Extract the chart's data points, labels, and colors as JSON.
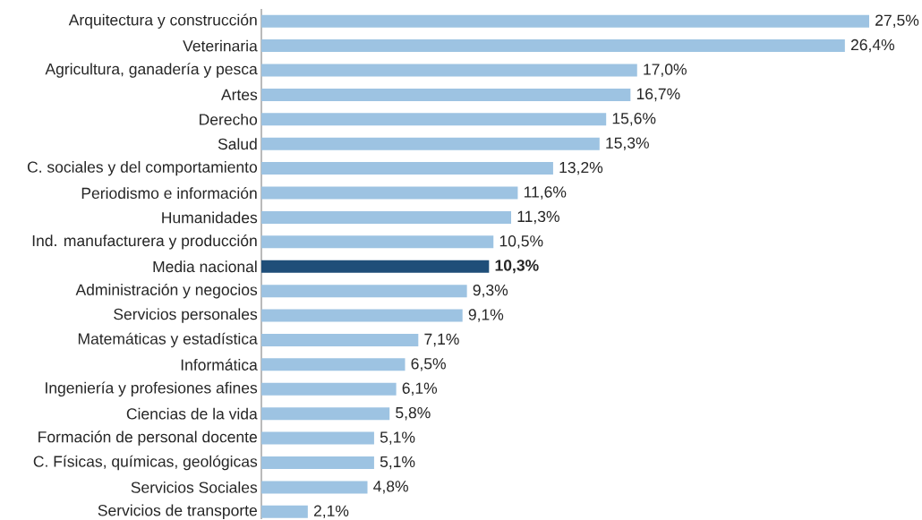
{
  "chart_data": {
    "type": "bar",
    "orientation": "horizontal",
    "categories": [
      "Arquitectura y construcción",
      "Veterinaria",
      "Agricultura, ganadería y pesca",
      "Artes",
      "Derecho",
      "Salud",
      "C. sociales y del comportamiento",
      "Periodismo e información",
      "Humanidades",
      "Ind. manufacturera y producción",
      "Media nacional",
      "Administración y negocios",
      "Servicios personales",
      "Matemáticas y estadística",
      "Informática",
      "Ingeniería y profesiones afines",
      "Ciencias de la vida",
      "Formación de personal docente",
      "C. Físicas, químicas, geológicas",
      "Servicios Sociales",
      "Servicios de transporte"
    ],
    "values": [
      27.5,
      26.4,
      17.0,
      16.7,
      15.6,
      15.3,
      13.2,
      11.6,
      11.3,
      10.5,
      10.3,
      9.3,
      9.1,
      7.1,
      6.5,
      6.1,
      5.8,
      5.1,
      5.1,
      4.8,
      2.1
    ],
    "value_labels": [
      "27,5%",
      "26,4%",
      "17,0%",
      "16,7%",
      "15,6%",
      "15,3%",
      "13,2%",
      "11,6%",
      "11,3%",
      "10,5%",
      "**10,3%**",
      "9,3%",
      "9,1%",
      "7,1%",
      "6,5%",
      "6,1%",
      "5,8%",
      "5,1%",
      "5,1%",
      "4,8%",
      "2,1%"
    ],
    "colors": [
      "#9dc3e2",
      "#9dc3e2",
      "#9dc3e2",
      "#9dc3e2",
      "#9dc3e2",
      "#9dc3e2",
      "#9dc3e2",
      "#9dc3e2",
      "#9dc3e2",
      "#9dc3e2",
      "#1f4e79",
      "#9dc3e2",
      "#9dc3e2",
      "#9dc3e2",
      "#9dc3e2",
      "#9dc3e2",
      "#9dc3e2",
      "#9dc3e2",
      "#9dc3e2",
      "#9dc3e2",
      "#9dc3e2"
    ],
    "relative": false
  }
}
